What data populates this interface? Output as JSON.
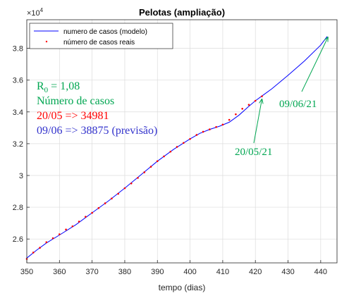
{
  "chart_data": {
    "type": "line",
    "title": "Pelotas (ampliação)",
    "xlabel": "tempo (dias)",
    "ylabel": "",
    "y_exponent_label": "×10",
    "y_exponent_power": "4",
    "xlim": [
      350,
      445
    ],
    "ylim": [
      24500,
      39800
    ],
    "x_ticks": [
      350,
      360,
      370,
      380,
      390,
      400,
      410,
      420,
      430,
      440
    ],
    "x_tick_labels": [
      "350",
      "360",
      "370",
      "380",
      "390",
      "400",
      "410",
      "420",
      "430",
      "440"
    ],
    "y_ticks": [
      26000,
      28000,
      30000,
      32000,
      34000,
      36000,
      38000
    ],
    "y_tick_labels": [
      "2.6",
      "2.8",
      "3",
      "3.2",
      "3.4",
      "3.6",
      "3.8"
    ],
    "grid": true,
    "legend_placement": "top-left",
    "series": [
      {
        "name": "numero de casos (modelo)",
        "color": "#0000ff",
        "style": "line",
        "x": [
          350,
          353,
          356,
          360,
          365,
          370,
          375,
          380,
          385,
          390,
          395,
          400,
          403,
          406,
          409,
          412,
          415,
          418,
          420,
          422,
          425,
          430,
          435,
          440,
          442
        ],
        "y": [
          24800,
          25300,
          25750,
          26250,
          26900,
          27650,
          28400,
          29200,
          30050,
          30900,
          31650,
          32300,
          32650,
          32900,
          33100,
          33350,
          33800,
          34350,
          34700,
          35000,
          35450,
          36300,
          37200,
          38200,
          38750
        ]
      },
      {
        "name": "número de casos reais",
        "color": "#ff0000",
        "style": "points",
        "x": [
          350,
          352,
          354,
          356,
          358,
          360,
          362,
          364,
          366,
          368,
          370,
          372,
          374,
          376,
          378,
          380,
          382,
          384,
          386,
          388,
          390,
          392,
          394,
          396,
          398,
          400,
          402,
          404,
          406,
          408,
          410,
          412,
          414,
          416,
          418,
          420,
          422
        ],
        "y": [
          24750,
          25150,
          25450,
          25800,
          26050,
          26300,
          26600,
          26800,
          27100,
          27400,
          27650,
          27950,
          28250,
          28550,
          28850,
          29200,
          29500,
          29850,
          30200,
          30550,
          30900,
          31200,
          31500,
          31800,
          32050,
          32300,
          32550,
          32750,
          32900,
          33050,
          33200,
          33500,
          33850,
          34200,
          34450,
          34700,
          34981
        ]
      }
    ],
    "annotations": {
      "r0_base": "R",
      "r0_sub": "0",
      "r0_value": " = 1,08",
      "cases_title": "Número de casos",
      "line_real": "20/05 => 34981",
      "line_forecast": "09/06 => 38875 (previsão)",
      "arrow_label_1": "20/05/21",
      "arrow_label_2": "09/06/21",
      "arrow_1_target": {
        "x": 422,
        "y": 34981
      },
      "arrow_2_target": {
        "x": 442,
        "y": 38875
      },
      "green": "#00a651",
      "red": "#ff0000",
      "blue": "#3333cc"
    }
  }
}
